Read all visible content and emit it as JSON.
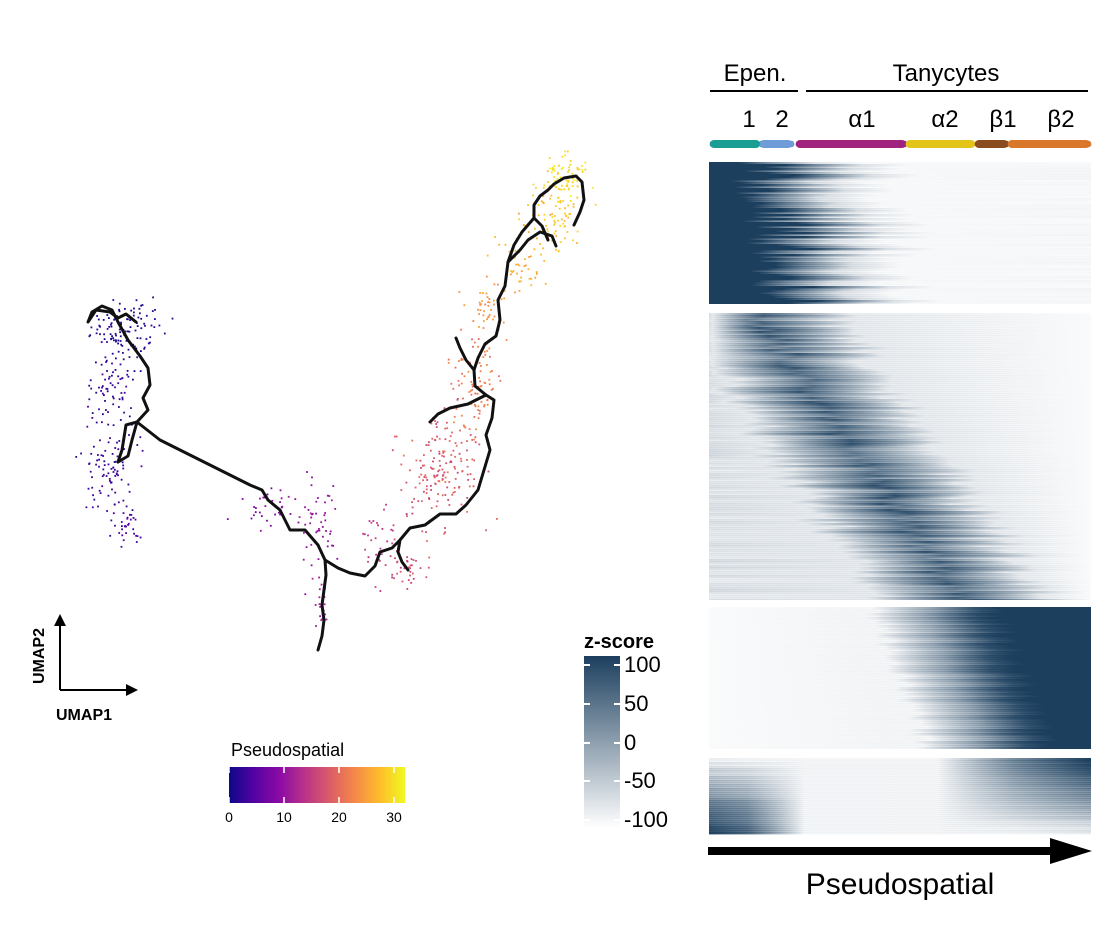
{
  "umap": {
    "xlabel": "UMAP1",
    "ylabel": "UMAP2",
    "colorbar": {
      "title": "Pseudospatial",
      "ticks": [
        "0",
        "10",
        "20",
        "30"
      ],
      "range": [
        0,
        32
      ],
      "colormap": [
        "#0d0887",
        "#5402a3",
        "#8b0aa5",
        "#b93289",
        "#db5c68",
        "#f48849",
        "#febd2a",
        "#f0f921"
      ]
    }
  },
  "heatmap": {
    "groups": [
      {
        "label": "Epen."
      },
      {
        "label": "Tanycytes"
      }
    ],
    "subtypes": [
      {
        "label": "1",
        "color": "#1a9e93"
      },
      {
        "label": "2",
        "color": "#6f9bd9"
      },
      {
        "label": "α1",
        "color": "#a0237f"
      },
      {
        "label": "α2",
        "color": "#e3c51a"
      },
      {
        "label": "β1",
        "color": "#8a4c1e"
      },
      {
        "label": "β2",
        "color": "#d9772b"
      }
    ],
    "scale": {
      "title": "z-score",
      "ticks": [
        "100",
        "50",
        "0",
        "-50",
        "-100"
      ],
      "color_high": "#1c3f5e",
      "color_low": "#ffffff"
    },
    "xlabel": "Pseudospatial"
  },
  "chart_data": [
    {
      "type": "scatter",
      "description_of_axes": "UMAP embedding coloured by pseudospatial value",
      "xlabel": "UMAP1",
      "ylabel": "UMAP2",
      "color_variable": "Pseudospatial",
      "color_range": [
        0,
        32
      ],
      "color_ticks": [
        0,
        10,
        20,
        30
      ]
    },
    {
      "type": "heatmap",
      "xlabel": "Pseudospatial",
      "column_groups": [
        "Epen.",
        "Tanycytes"
      ],
      "column_subtypes": [
        "1",
        "2",
        "α1",
        "α2",
        "β1",
        "β2"
      ],
      "row_blocks": 4,
      "value_label": "z-score",
      "value_range": [
        -100,
        100
      ],
      "value_ticks": [
        100,
        50,
        0,
        -50,
        -100
      ]
    }
  ]
}
